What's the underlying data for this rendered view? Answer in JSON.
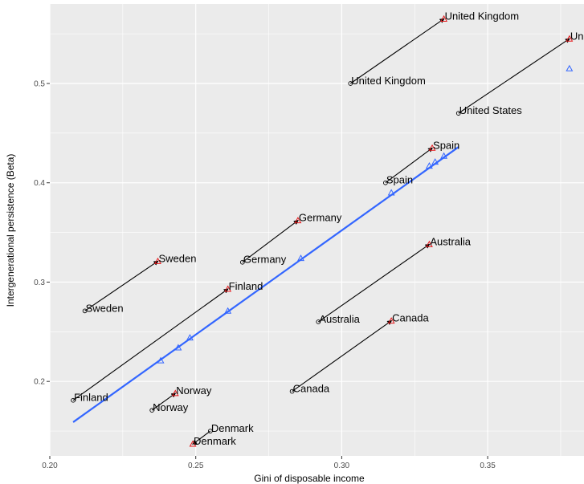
{
  "chart_data": {
    "type": "scatter",
    "xlabel": "Gini of disposable income",
    "ylabel": "Intergenerational persistence (Beta)",
    "xlim": [
      0.2,
      0.383
    ],
    "ylim": [
      0.125,
      0.58
    ],
    "x_ticks": [
      {
        "value": 0.2,
        "label": "0.20"
      },
      {
        "value": 0.25,
        "label": "0.25"
      },
      {
        "value": 0.3,
        "label": "0.30"
      },
      {
        "value": 0.35,
        "label": "0.35"
      }
    ],
    "y_ticks": [
      {
        "value": 0.2,
        "label": "0.2"
      },
      {
        "value": 0.3,
        "label": "0.3"
      },
      {
        "value": 0.4,
        "label": "0.4"
      },
      {
        "value": 0.5,
        "label": "0.5"
      }
    ],
    "grid": true,
    "colors": {
      "panel": "#ebebeb",
      "grid": "#ffffff",
      "fit_line": "#3366ff",
      "predicted_marker": "#3366ff",
      "actual_marker": "#e41a1c",
      "start_marker": "#000000",
      "arrow": "#000000"
    },
    "countries": [
      {
        "name": "United Kingdom",
        "from": [
          0.303,
          0.5
        ],
        "to": [
          0.335,
          0.565
        ]
      },
      {
        "name": "United States",
        "end_label": "Unite",
        "from": [
          0.34,
          0.47
        ],
        "to": [
          0.378,
          0.545
        ]
      },
      {
        "name": "Spain",
        "from": [
          0.315,
          0.4
        ],
        "to": [
          0.331,
          0.435
        ]
      },
      {
        "name": "Germany",
        "from": [
          0.266,
          0.32
        ],
        "to": [
          0.285,
          0.362
        ]
      },
      {
        "name": "Sweden",
        "from": [
          0.212,
          0.271
        ],
        "to": [
          0.237,
          0.321
        ]
      },
      {
        "name": "Australia",
        "from": [
          0.292,
          0.26
        ],
        "to": [
          0.33,
          0.338
        ]
      },
      {
        "name": "Finland",
        "from": [
          0.208,
          0.181
        ],
        "to": [
          0.261,
          0.293
        ]
      },
      {
        "name": "Canada",
        "from": [
          0.283,
          0.19
        ],
        "to": [
          0.317,
          0.261
        ]
      },
      {
        "name": "Norway",
        "from": [
          0.235,
          0.171
        ],
        "to": [
          0.243,
          0.188
        ]
      },
      {
        "name": "Denmark",
        "from": [
          0.255,
          0.15
        ],
        "to": [
          0.249,
          0.137
        ]
      }
    ],
    "fit_line": {
      "x": [
        0.208,
        0.34
      ],
      "y": [
        0.159,
        0.436
      ]
    },
    "predicted_points": {
      "x": [
        0.238,
        0.244,
        0.248,
        0.261,
        0.286,
        0.317,
        0.33,
        0.332,
        0.335,
        0.378
      ],
      "y": [
        0.221,
        0.234,
        0.244,
        0.271,
        0.324,
        0.39,
        0.417,
        0.421,
        0.427,
        0.515
      ]
    }
  }
}
